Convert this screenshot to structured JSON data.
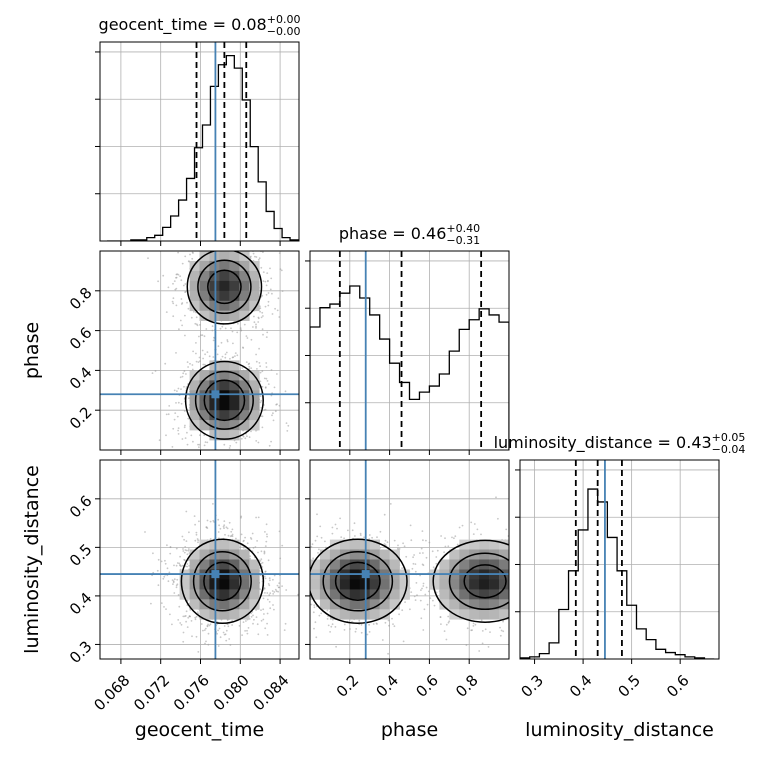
{
  "chart_data": {
    "type": "corner",
    "truth_color": "#4682b4",
    "grid": true,
    "parameters": [
      {
        "name": "geocent_time",
        "axis_label": "geocent_time",
        "title": {
          "prefix": "geocent_time = ",
          "value": "0.08",
          "plus": "+0.00",
          "minus": "−0.00"
        },
        "range": [
          0.0659,
          0.0859
        ],
        "ticks": [
          0.068,
          0.072,
          0.076,
          0.08,
          0.084
        ],
        "tick_labels": [
          "0.068",
          "0.072",
          "0.076",
          "0.080",
          "0.084"
        ],
        "truth": 0.0775,
        "quantiles": [
          0.0756,
          0.0784,
          0.0806
        ],
        "hist_bins_left": [
          0.0666,
          0.0674,
          0.0682,
          0.069,
          0.0698,
          0.0706,
          0.0714,
          0.0722,
          0.073,
          0.0738,
          0.0746,
          0.0754,
          0.0762,
          0.077,
          0.0778,
          0.0786,
          0.0794,
          0.0802,
          0.081,
          0.0818,
          0.0826,
          0.0834,
          0.0842,
          0.085
        ],
        "hist_bin_width": 0.0008,
        "hist_counts": [
          0,
          0,
          0,
          1,
          1,
          3,
          5,
          12,
          22,
          36,
          55,
          82,
          102,
          136,
          155,
          163,
          152,
          124,
          83,
          52,
          26,
          11,
          3,
          1
        ],
        "hist_max": 175
      },
      {
        "name": "phase",
        "axis_label": "phase",
        "title": {
          "prefix": "phase = ",
          "value": "0.46",
          "plus": "+0.40",
          "minus": "−0.31"
        },
        "range": [
          0.0,
          1.0
        ],
        "ticks": [
          0.2,
          0.4,
          0.6,
          0.8
        ],
        "tick_labels": [
          "0.2",
          "0.4",
          "0.6",
          "0.8"
        ],
        "truth": 0.28,
        "quantiles": [
          0.15,
          0.46,
          0.86
        ],
        "hist_bins_left": [
          0.0,
          0.05,
          0.1,
          0.15,
          0.2,
          0.25,
          0.3,
          0.35,
          0.4,
          0.45,
          0.5,
          0.55,
          0.6,
          0.65,
          0.7,
          0.75,
          0.8,
          0.85,
          0.9,
          0.95
        ],
        "hist_bin_width": 0.05,
        "hist_counts": [
          102,
          118,
          121,
          130,
          136,
          126,
          112,
          92,
          72,
          56,
          42,
          48,
          53,
          63,
          82,
          100,
          108,
          117,
          112,
          106
        ],
        "hist_max": 165
      },
      {
        "name": "luminosity_distance",
        "axis_label": "luminosity_distance",
        "title": {
          "prefix": "luminosity_distance = ",
          "value": "0.43",
          "plus": "+0.05",
          "minus": "−0.04"
        },
        "range": [
          0.27,
          0.68
        ],
        "ticks": [
          0.3,
          0.4,
          0.5,
          0.6
        ],
        "tick_labels": [
          "0.3",
          "0.4",
          "0.5",
          "0.6"
        ],
        "truth": 0.445,
        "quantiles": [
          0.385,
          0.43,
          0.48
        ],
        "hist_bins_left": [
          0.27,
          0.29,
          0.31,
          0.33,
          0.35,
          0.37,
          0.39,
          0.41,
          0.43,
          0.45,
          0.47,
          0.49,
          0.51,
          0.53,
          0.55,
          0.57,
          0.59,
          0.61,
          0.63,
          0.65
        ],
        "hist_bin_width": 0.02,
        "hist_counts": [
          1,
          2,
          5,
          15,
          46,
          82,
          120,
          158,
          146,
          113,
          82,
          50,
          28,
          18,
          9,
          6,
          4,
          2,
          1,
          0
        ],
        "hist_max": 185
      }
    ],
    "joint": [
      {
        "x": "geocent_time",
        "y": "phase",
        "modes": [
          {
            "cx": 0.0784,
            "cy": 0.25,
            "sx": 0.002,
            "sy": 0.1,
            "w": 1.0
          },
          {
            "cx": 0.0784,
            "cy": 0.82,
            "sx": 0.002,
            "sy": 0.1,
            "w": 0.85
          }
        ],
        "contour_levels": [
          0.15,
          0.35,
          0.6
        ]
      },
      {
        "x": "geocent_time",
        "y": "luminosity_distance",
        "modes": [
          {
            "cx": 0.0782,
            "cy": 0.43,
            "sx": 0.002,
            "sy": 0.042,
            "w": 1.0
          }
        ],
        "contour_levels": [
          0.12,
          0.35,
          0.65
        ]
      },
      {
        "x": "phase",
        "y": "luminosity_distance",
        "modes": [
          {
            "cx": 0.24,
            "cy": 0.43,
            "sx": 0.12,
            "sy": 0.042,
            "w": 1.0
          },
          {
            "cx": 0.88,
            "cy": 0.43,
            "sx": 0.13,
            "sy": 0.042,
            "w": 0.9
          }
        ],
        "contour_levels": [
          0.12,
          0.35,
          0.65
        ]
      }
    ]
  }
}
